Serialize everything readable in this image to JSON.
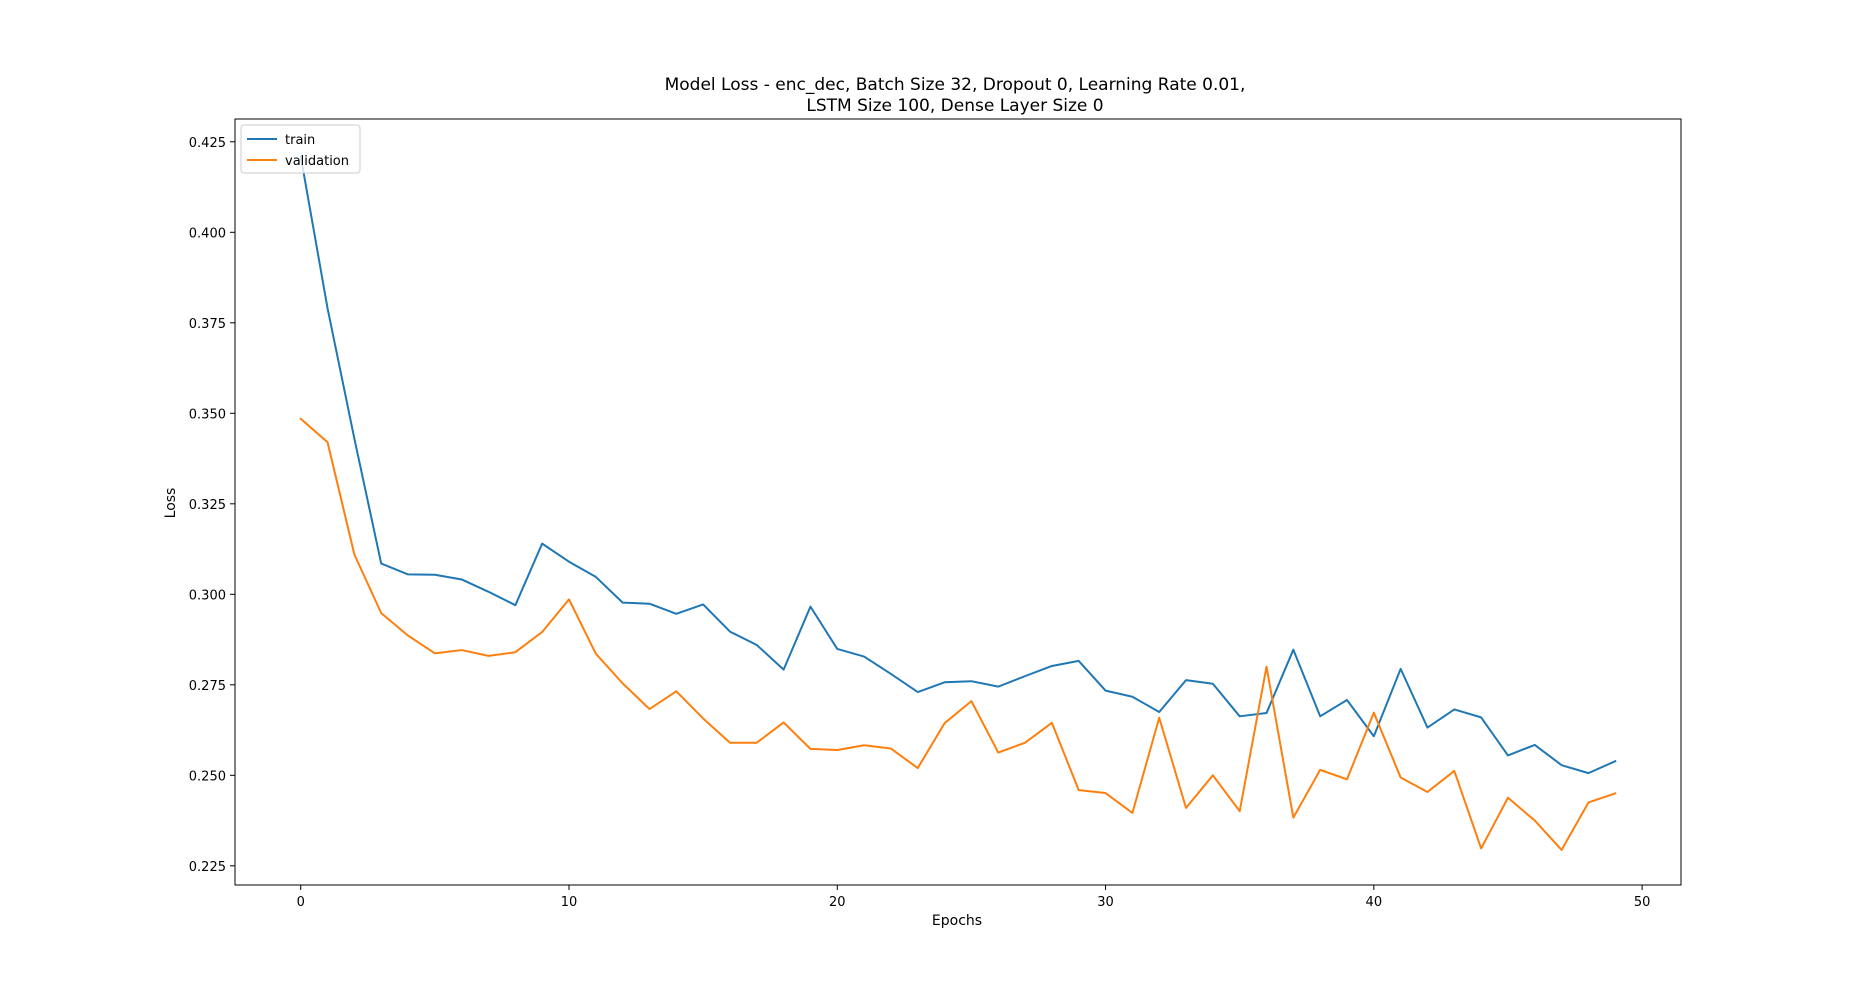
{
  "chart_data": {
    "type": "line",
    "title_lines": [
      "Model Loss - enc_dec, Batch Size 32, Dropout 0, Learning Rate 0.01,",
      "LSTM Size 100, Dense Layer Size 0"
    ],
    "xlabel": "Epochs",
    "ylabel": "Loss",
    "xlim": [
      -2.45,
      51.45
    ],
    "ylim": [
      0.2197,
      0.4313
    ],
    "xticks": [
      0,
      10,
      20,
      30,
      40,
      50
    ],
    "xtick_labels": [
      "0",
      "10",
      "20",
      "30",
      "40",
      "50"
    ],
    "yticks": [
      0.225,
      0.25,
      0.275,
      0.3,
      0.325,
      0.35,
      0.375,
      0.4,
      0.425
    ],
    "ytick_labels": [
      "0.225",
      "0.250",
      "0.275",
      "0.300",
      "0.325",
      "0.350",
      "0.375",
      "0.400",
      "0.425"
    ],
    "grid": false,
    "legend_position": "top-left",
    "x": [
      0,
      1,
      2,
      3,
      4,
      5,
      6,
      7,
      8,
      9,
      10,
      11,
      12,
      13,
      14,
      15,
      16,
      17,
      18,
      19,
      20,
      21,
      22,
      23,
      24,
      25,
      26,
      27,
      28,
      29,
      30,
      31,
      32,
      33,
      34,
      35,
      36,
      37,
      38,
      39,
      40,
      41,
      42,
      43,
      44,
      45,
      46,
      47,
      48,
      49
    ],
    "series": [
      {
        "name": "train",
        "color": "#1f77b4",
        "values": [
          0.421,
          0.379,
          0.343,
          0.3085,
          0.3055,
          0.3054,
          0.3041,
          0.3007,
          0.297,
          0.314,
          0.309,
          0.3048,
          0.2977,
          0.2974,
          0.2946,
          0.2972,
          0.2897,
          0.286,
          0.2792,
          0.2966,
          0.2849,
          0.2828,
          0.278,
          0.273,
          0.2757,
          0.276,
          0.2745,
          0.2774,
          0.2802,
          0.2816,
          0.2734,
          0.2717,
          0.2675,
          0.2763,
          0.2753,
          0.2663,
          0.2672,
          0.2847,
          0.2663,
          0.2708,
          0.2608,
          0.2794,
          0.2632,
          0.2682,
          0.266,
          0.2555,
          0.2584,
          0.2528,
          0.2506,
          0.2539
        ]
      },
      {
        "name": "validation",
        "color": "#ff7f0e",
        "values": [
          0.3485,
          0.342,
          0.311,
          0.2948,
          0.2886,
          0.2837,
          0.2846,
          0.283,
          0.284,
          0.2896,
          0.2986,
          0.2836,
          0.2754,
          0.2683,
          0.2732,
          0.2657,
          0.259,
          0.259,
          0.2646,
          0.2573,
          0.257,
          0.2583,
          0.2574,
          0.252,
          0.2644,
          0.2705,
          0.2563,
          0.259,
          0.2645,
          0.2459,
          0.2451,
          0.2396,
          0.2659,
          0.241,
          0.25,
          0.2401,
          0.28,
          0.2383,
          0.2515,
          0.2489,
          0.2673,
          0.2494,
          0.2454,
          0.2512,
          0.2298,
          0.2438,
          0.2375,
          0.2294,
          0.2425,
          0.245
        ]
      }
    ]
  }
}
